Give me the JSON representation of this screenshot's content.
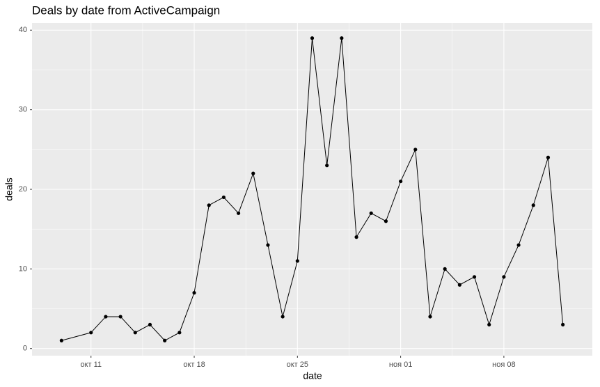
{
  "chart_data": {
    "type": "line",
    "title": "Deals by date from ActiveCampaign",
    "x_label": "date",
    "y_label": "deals",
    "x": [
      "10-09",
      "10-11",
      "10-12",
      "10-13",
      "10-14",
      "10-15",
      "10-16",
      "10-17",
      "10-18",
      "10-19",
      "10-20",
      "10-21",
      "10-22",
      "10-23",
      "10-24",
      "10-25",
      "10-26",
      "10-27",
      "10-28",
      "10-29",
      "10-30",
      "10-31",
      "11-01",
      "11-02",
      "11-03",
      "11-04",
      "11-05",
      "11-06",
      "11-07",
      "11-08",
      "11-09",
      "11-10",
      "11-11",
      "11-12"
    ],
    "series": [
      {
        "name": "deals",
        "color": "#000000",
        "values": [
          1,
          2,
          4,
          4,
          2,
          3,
          1,
          2,
          7,
          18,
          19,
          17,
          22,
          13,
          4,
          11,
          39,
          23,
          39,
          14,
          17,
          16,
          21,
          25,
          4,
          10,
          8,
          9,
          3,
          9,
          13,
          18,
          24,
          3
        ]
      }
    ],
    "xlim": [
      "10-07",
      "11-14"
    ],
    "xticks": [
      {
        "value": "10-11",
        "label": "окт 11"
      },
      {
        "value": "10-18",
        "label": "окт 18"
      },
      {
        "value": "10-25",
        "label": "окт 25"
      },
      {
        "value": "11-01",
        "label": "ноя 01"
      },
      {
        "value": "11-08",
        "label": "ноя 08"
      }
    ],
    "ylim": [
      -0.9,
      40.9
    ],
    "yticks": [
      0,
      10,
      20,
      30,
      40
    ],
    "grid": true,
    "minor_grid": true
  }
}
